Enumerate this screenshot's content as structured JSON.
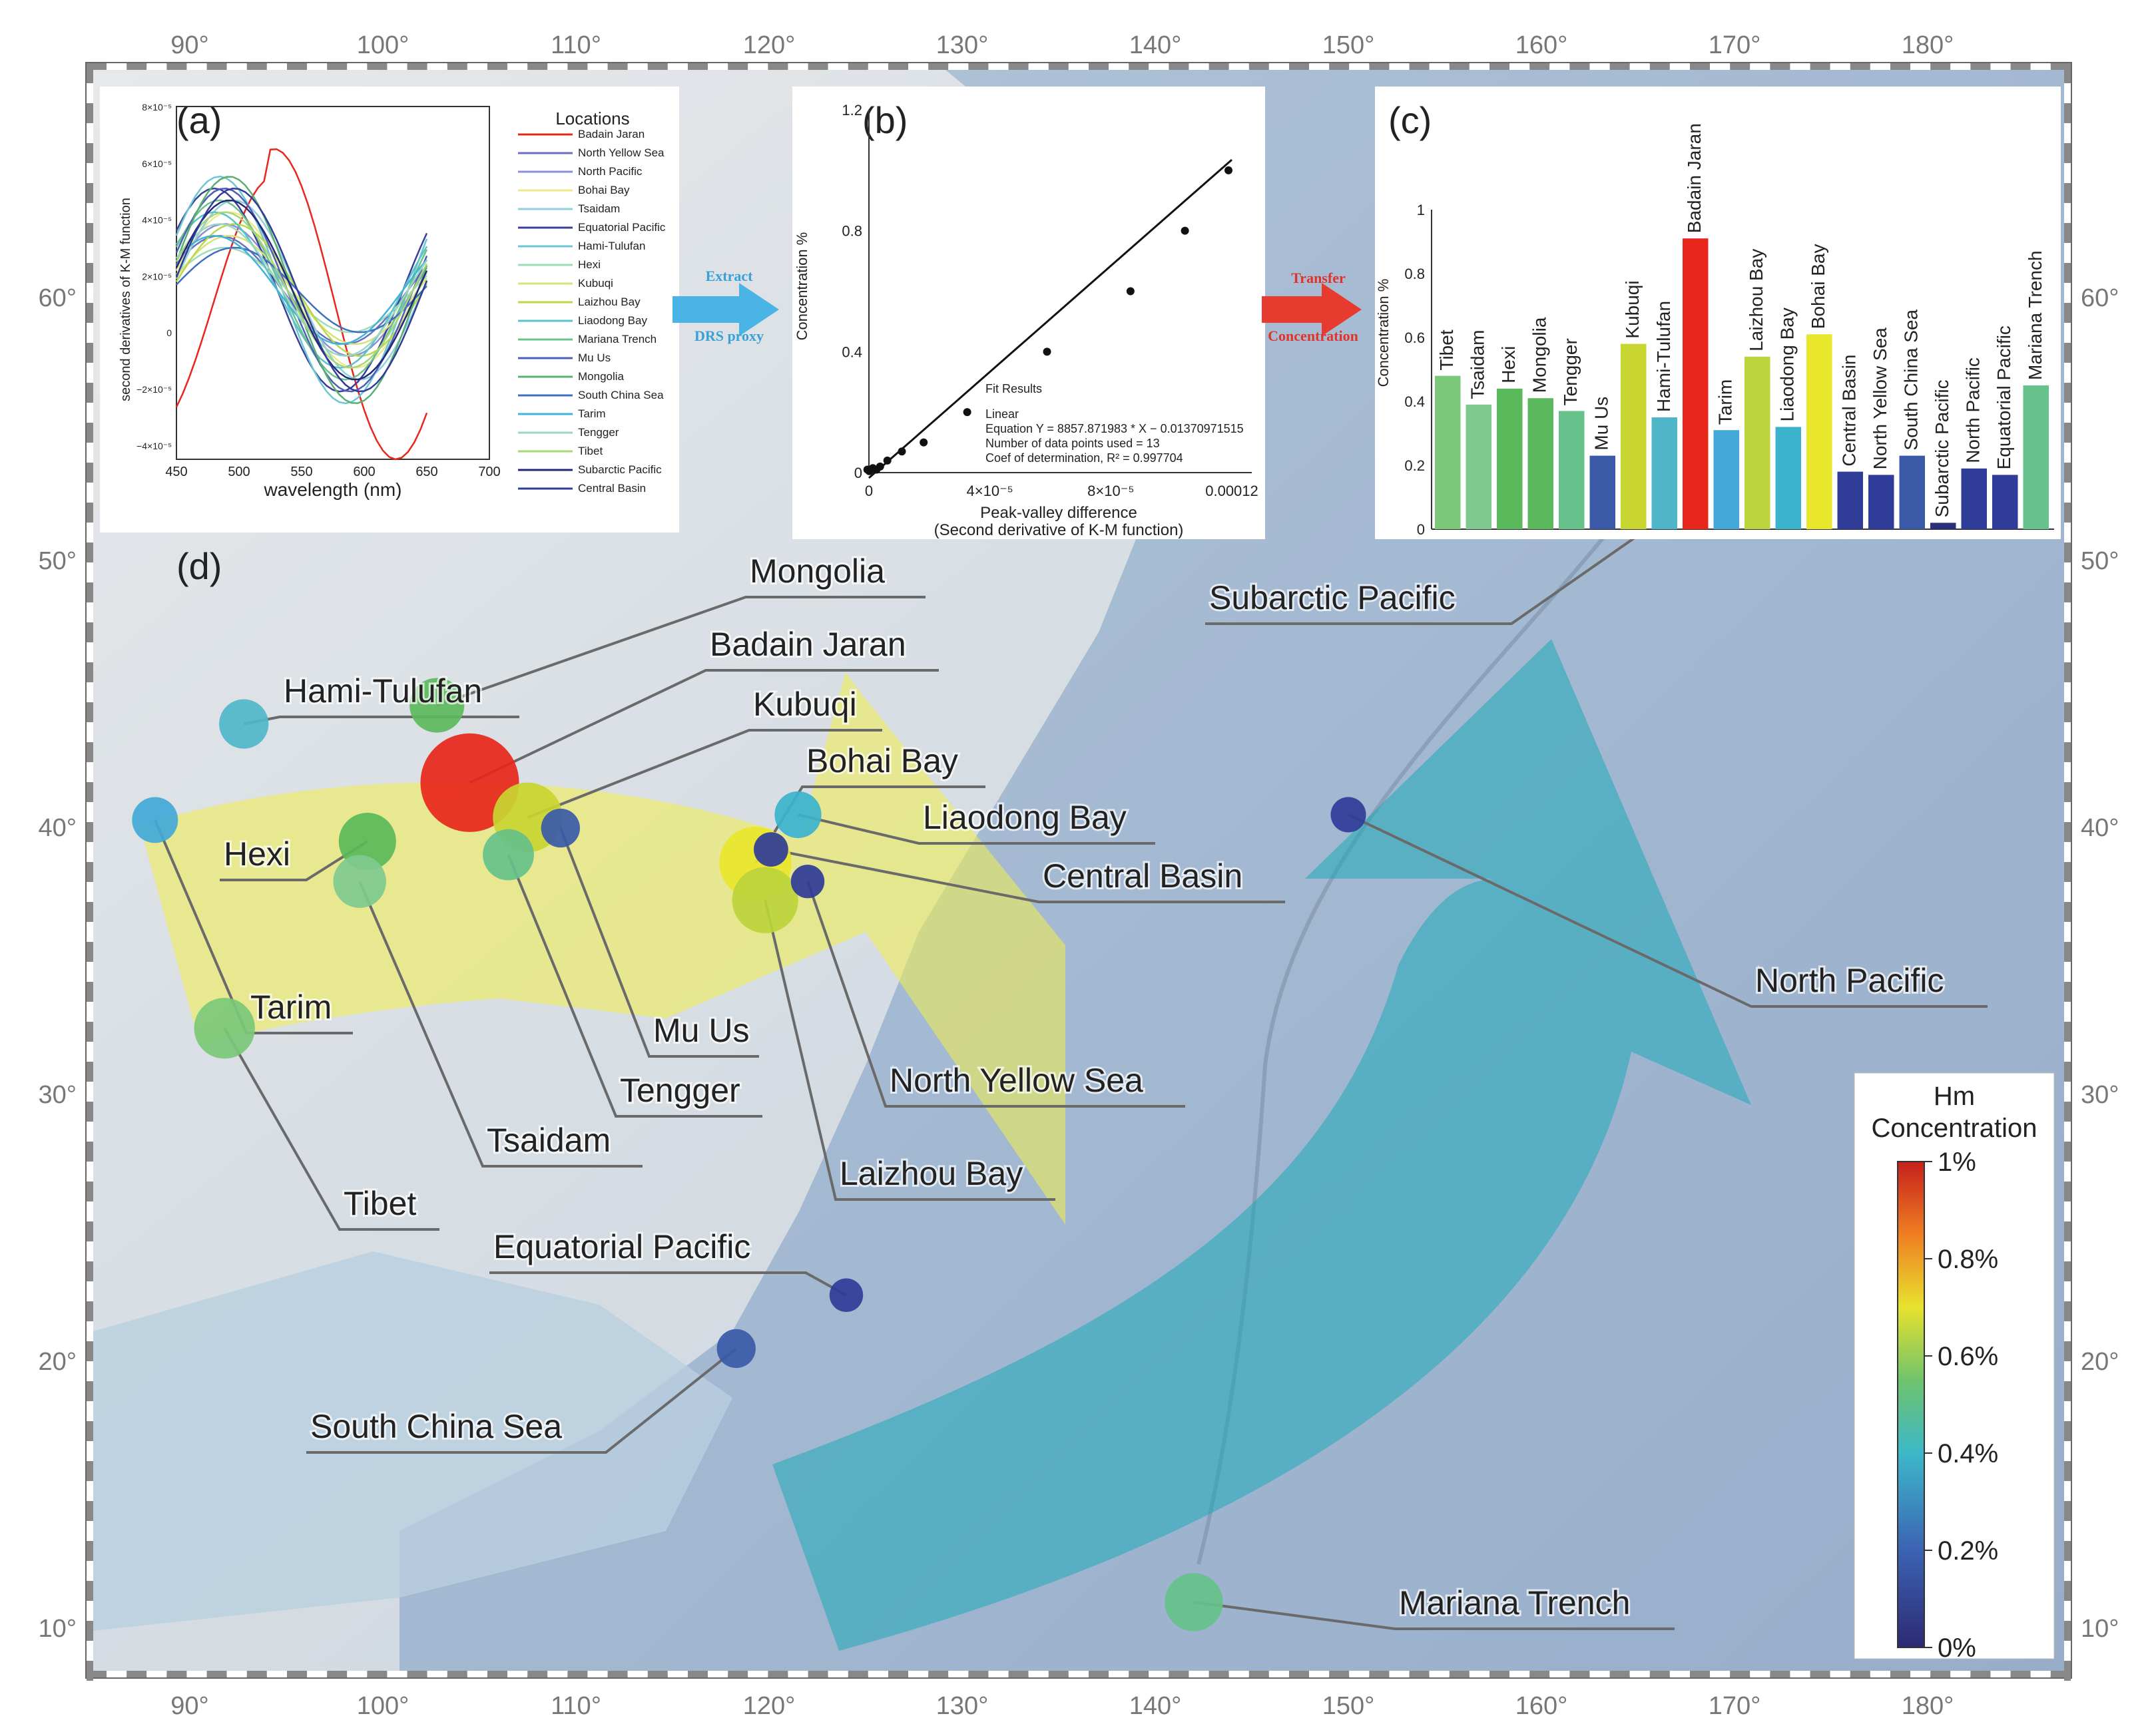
{
  "map": {
    "lon_ticks": [
      "90°",
      "100°",
      "110°",
      "120°",
      "130°",
      "140°",
      "150°",
      "160°",
      "170°",
      "180°"
    ],
    "lat_ticks": [
      "60°",
      "50°",
      "40°",
      "30°",
      "20°",
      "10°"
    ],
    "panel_label": "(d)",
    "locations": [
      {
        "name": "Mongolia",
        "lon": 102.8,
        "lat": 44.6,
        "conc": 0.41,
        "color": "#5cb85c"
      },
      {
        "name": "Badain Jaran",
        "lon": 104.5,
        "lat": 41.7,
        "conc": 0.91,
        "color": "#e8261c"
      },
      {
        "name": "Kubuqi",
        "lon": 107.5,
        "lat": 40.4,
        "conc": 0.58,
        "color": "#c9d531"
      },
      {
        "name": "Bohai Bay",
        "lon": 119.3,
        "lat": 38.7,
        "conc": 0.61,
        "color": "#e9e72c"
      },
      {
        "name": "Liaodong Bay",
        "lon": 121.5,
        "lat": 40.5,
        "conc": 0.32,
        "color": "#3bb3cc"
      },
      {
        "name": "Central Basin",
        "lon": 120.1,
        "lat": 39.2,
        "conc": 0.18,
        "color": "#2f3c98"
      },
      {
        "name": "Hami-Tulufan",
        "lon": 92.8,
        "lat": 43.9,
        "conc": 0.35,
        "color": "#4fb6c9"
      },
      {
        "name": "Hexi",
        "lon": 99.2,
        "lat": 39.5,
        "conc": 0.44,
        "color": "#5ab95a"
      },
      {
        "name": "Tarim",
        "lon": 88.2,
        "lat": 40.3,
        "conc": 0.31,
        "color": "#41a8d8"
      },
      {
        "name": "Mu Us",
        "lon": 109.2,
        "lat": 40.0,
        "conc": 0.23,
        "color": "#3a5aa8"
      },
      {
        "name": "Tengger",
        "lon": 106.5,
        "lat": 39.0,
        "conc": 0.37,
        "color": "#66c18a"
      },
      {
        "name": "Tsaidam",
        "lon": 98.8,
        "lat": 38.0,
        "conc": 0.39,
        "color": "#7fc98f"
      },
      {
        "name": "North Yellow Sea",
        "lon": 122.0,
        "lat": 38.0,
        "conc": 0.17,
        "color": "#2f3c98"
      },
      {
        "name": "Laizhou Bay",
        "lon": 119.8,
        "lat": 37.3,
        "conc": 0.54,
        "color": "#bcd43b"
      },
      {
        "name": "Subarctic Pacific",
        "lon": 167.0,
        "lat": 52.0,
        "conc": 0.02,
        "color": "#2c2f7a"
      },
      {
        "name": "North Pacific",
        "lon": 150.0,
        "lat": 40.5,
        "conc": 0.19,
        "color": "#2f3c98"
      },
      {
        "name": "Tibet",
        "lon": 91.8,
        "lat": 32.5,
        "conc": 0.48,
        "color": "#7bc87a"
      },
      {
        "name": "Equatorial Pacific",
        "lon": 124.0,
        "lat": 22.5,
        "conc": 0.17,
        "color": "#2f3c98"
      },
      {
        "name": "South China Sea",
        "lon": 118.3,
        "lat": 20.5,
        "conc": 0.23,
        "color": "#3a5aa8"
      },
      {
        "name": "Mariana Trench",
        "lon": 142.0,
        "lat": 11.0,
        "conc": 0.45,
        "color": "#66c18a"
      }
    ]
  },
  "colorbar": {
    "title_line1": "Hm",
    "title_line2": "Concentration",
    "ticks": [
      "1%",
      "0.8%",
      "0.6%",
      "0.4%",
      "0.2%",
      "0%"
    ]
  },
  "panel_a": {
    "label": "(a)",
    "ylabel": "second derivatives of K-M function",
    "xlabel": "wavelength (nm)",
    "x_ticks": [
      "450",
      "500",
      "550",
      "600",
      "650",
      "700"
    ],
    "y_ticks": [
      "8×10⁻⁵",
      "6×10⁻⁵",
      "4×10⁻⁵",
      "2×10⁻⁵",
      "0",
      "−2×10⁻⁵",
      "−4×10⁻⁵"
    ],
    "legend_title": "Locations",
    "legend": [
      {
        "name": "Badain Jaran",
        "color": "#e8261c"
      },
      {
        "name": "North Yellow Sea",
        "color": "#6b6fc2"
      },
      {
        "name": "North Pacific",
        "color": "#8d8fd4"
      },
      {
        "name": "Bohai Bay",
        "color": "#efe98a"
      },
      {
        "name": "Tsaidam",
        "color": "#8fd0d9"
      },
      {
        "name": "Equatorial Pacific",
        "color": "#3a3f9a"
      },
      {
        "name": "Hami-Tulufan",
        "color": "#6cc6d4"
      },
      {
        "name": "Hexi",
        "color": "#9fdcb5"
      },
      {
        "name": "Kubuqi",
        "color": "#d8e27a"
      },
      {
        "name": "Laizhou Bay",
        "color": "#b9d84a"
      },
      {
        "name": "Liaodong Bay",
        "color": "#5cc3c8"
      },
      {
        "name": "Mariana Trench",
        "color": "#6cc18a"
      },
      {
        "name": "Mu Us",
        "color": "#4d5fb8"
      },
      {
        "name": "Mongolia",
        "color": "#5ab070"
      },
      {
        "name": "South China Sea",
        "color": "#3f6fc0"
      },
      {
        "name": "Tarim",
        "color": "#41b3d8"
      },
      {
        "name": "Tengger",
        "color": "#9ad6c0"
      },
      {
        "name": "Tibet",
        "color": "#a6d57a"
      },
      {
        "name": "Subarctic Pacific",
        "color": "#22277a"
      },
      {
        "name": "Central Basin",
        "color": "#2f3c98"
      }
    ]
  },
  "arrow1": {
    "line1": "Extract",
    "line2": "DRS proxy"
  },
  "arrow2": {
    "line1": "Transfer",
    "line2": "Concentration"
  },
  "panel_b": {
    "label": "(b)",
    "ylabel": "Concentration %",
    "xlabel_line1": "Peak-valley difference",
    "xlabel_line2": "(Second derivative of K-M function)",
    "y_ticks": [
      "0",
      "0.4",
      "0.8",
      "1.2"
    ],
    "x_ticks": [
      "0",
      "4×10⁻⁵",
      "8×10⁻⁵",
      "0.00012"
    ],
    "fit_title": "Fit Results",
    "fit_lines": [
      "Linear",
      "Equation Y = 8857.871983 * X − 0.01370971515",
      "Number of data points used = 13",
      "Coef of determination, R² = 0.997704"
    ]
  },
  "chart_data": {
    "type": "bar",
    "title": "(c)",
    "ylabel": "Concentration %",
    "ylim": [
      0,
      1
    ],
    "y_ticks": [
      "0",
      "0.2",
      "0.4",
      "0.6",
      "0.8",
      "1"
    ],
    "categories": [
      "Tibet",
      "Tsaidam",
      "Hexi",
      "Mongolia",
      "Tengger",
      "Mu Us",
      "Kubuqi",
      "Hami-Tulufan",
      "Badain Jaran",
      "Tarim",
      "Laizhou Bay",
      "Liaodong Bay",
      "Bohai Bay",
      "Central Basin",
      "North Yellow Sea",
      "South China Sea",
      "Subarctic Pacific",
      "North Pacific",
      "Equatorial Pacific",
      "Mariana Trench"
    ],
    "values": [
      0.48,
      0.39,
      0.44,
      0.41,
      0.37,
      0.23,
      0.58,
      0.35,
      0.91,
      0.31,
      0.54,
      0.32,
      0.61,
      0.18,
      0.17,
      0.23,
      0.02,
      0.19,
      0.17,
      0.45
    ],
    "colors": [
      "#7bc87a",
      "#7fc98f",
      "#5ab95a",
      "#5cb85c",
      "#66c18a",
      "#3a5aa8",
      "#c9d531",
      "#4fb6c9",
      "#e8261c",
      "#41a8d8",
      "#bcd43b",
      "#3bb3cc",
      "#e9e72c",
      "#2f3c98",
      "#2f3c98",
      "#3a5aa8",
      "#2c2f7a",
      "#2f3c98",
      "#2f3c98",
      "#66c18a"
    ]
  }
}
